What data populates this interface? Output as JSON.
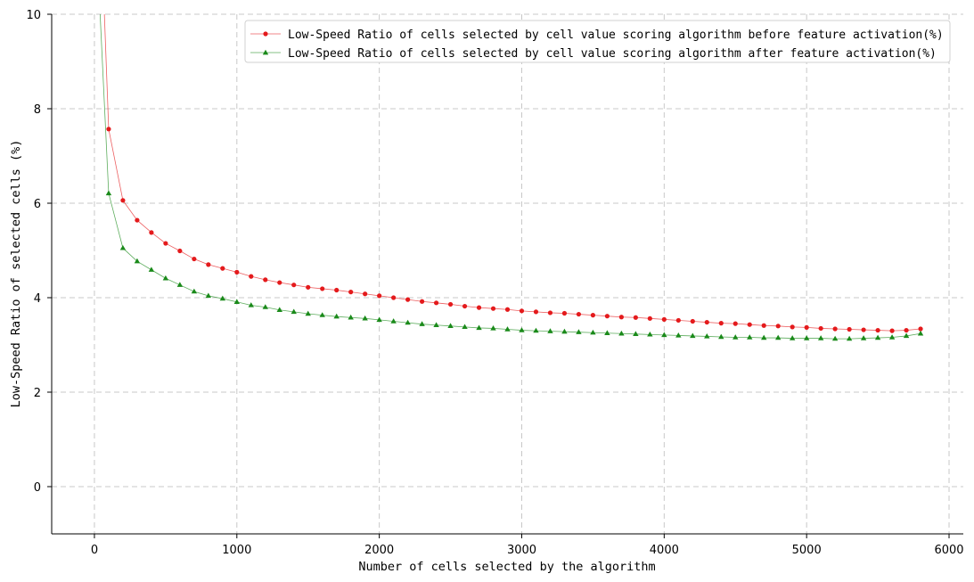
{
  "chart_data": {
    "type": "line",
    "xlabel": "Number of cells selected by the algorithm",
    "ylabel": "Low-Speed Ratio of selected cells (%)",
    "xlim": [
      -300,
      6100
    ],
    "ylim": [
      -1,
      10
    ],
    "xticks": [
      0,
      1000,
      2000,
      3000,
      4000,
      5000,
      6000
    ],
    "yticks": [
      0,
      2,
      4,
      6,
      8,
      10
    ],
    "grid": true,
    "legend_position": "top-right",
    "x": [
      100,
      200,
      300,
      400,
      500,
      600,
      700,
      800,
      900,
      1000,
      1100,
      1200,
      1300,
      1400,
      1500,
      1600,
      1700,
      1800,
      1900,
      2000,
      2100,
      2200,
      2300,
      2400,
      2500,
      2600,
      2700,
      2800,
      2900,
      3000,
      3100,
      3200,
      3300,
      3400,
      3500,
      3600,
      3700,
      3800,
      3900,
      4000,
      4100,
      4200,
      4300,
      4400,
      4500,
      4600,
      4700,
      4800,
      4900,
      5000,
      5100,
      5200,
      5300,
      5400,
      5500,
      5600,
      5700,
      5800
    ],
    "series": [
      {
        "name": "Low-Speed Ratio of cells selected by cell value scoring algorithm before feature activation(%)",
        "color": "#e41a1c",
        "marker": "circle",
        "curve_start": [
          70,
          10.0
        ],
        "values": [
          7.57,
          6.06,
          5.64,
          5.38,
          5.15,
          4.99,
          4.82,
          4.7,
          4.62,
          4.54,
          4.45,
          4.38,
          4.32,
          4.27,
          4.22,
          4.19,
          4.16,
          4.12,
          4.08,
          4.04,
          4.0,
          3.96,
          3.92,
          3.89,
          3.86,
          3.82,
          3.79,
          3.77,
          3.75,
          3.72,
          3.7,
          3.68,
          3.67,
          3.65,
          3.63,
          3.61,
          3.59,
          3.58,
          3.56,
          3.54,
          3.52,
          3.5,
          3.48,
          3.46,
          3.45,
          3.43,
          3.41,
          3.4,
          3.38,
          3.37,
          3.35,
          3.34,
          3.33,
          3.32,
          3.31,
          3.3,
          3.31,
          3.34
        ]
      },
      {
        "name": "Low-Speed Ratio of cells selected by cell value scoring algorithm after feature activation(%)",
        "color": "#1a8a1a",
        "marker": "triangle",
        "curve_start": [
          40,
          10.0
        ],
        "values": [
          6.21,
          5.05,
          4.77,
          4.59,
          4.41,
          4.27,
          4.13,
          4.04,
          3.98,
          3.91,
          3.84,
          3.8,
          3.74,
          3.7,
          3.66,
          3.63,
          3.6,
          3.58,
          3.56,
          3.53,
          3.5,
          3.47,
          3.44,
          3.42,
          3.4,
          3.38,
          3.36,
          3.35,
          3.33,
          3.31,
          3.3,
          3.29,
          3.28,
          3.27,
          3.26,
          3.25,
          3.24,
          3.23,
          3.22,
          3.21,
          3.2,
          3.19,
          3.18,
          3.17,
          3.16,
          3.16,
          3.15,
          3.15,
          3.14,
          3.14,
          3.14,
          3.13,
          3.13,
          3.14,
          3.15,
          3.16,
          3.19,
          3.24
        ]
      }
    ]
  }
}
